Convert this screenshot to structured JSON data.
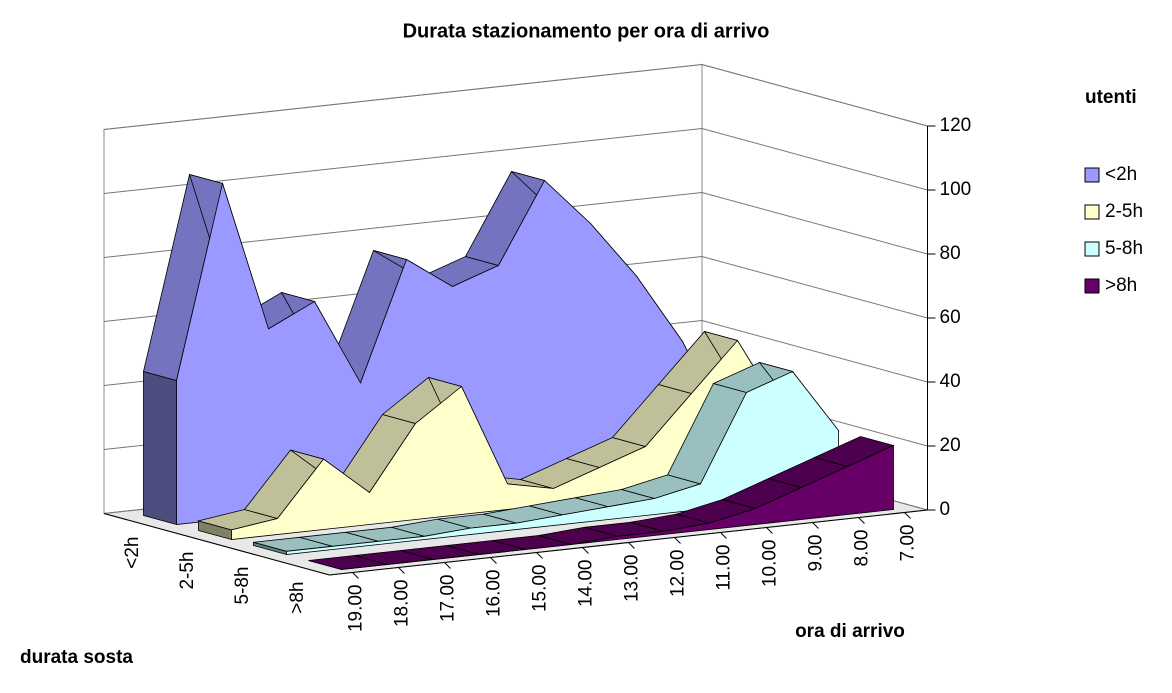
{
  "chart_data": {
    "type": "area",
    "title": "Durata stazionamento per ora di arrivo",
    "y_label": "utenti",
    "x_label": "ora di arrivo",
    "z_label": "durata sosta",
    "categories": [
      "19.00",
      "18.00",
      "17.00",
      "16.00",
      "15.00",
      "14.00",
      "13.00",
      "12.00",
      "11.00",
      "10.00",
      "9.00",
      "8.00",
      "7.00"
    ],
    "series": [
      {
        "name": "<2h",
        "color": "#9999ff",
        "values": [
          45,
          105,
          58,
          65,
          38,
          75,
          65,
          70,
          95,
          80,
          62,
          40,
          10
        ]
      },
      {
        "name": "2-5h",
        "color": "#ffffcc",
        "values": [
          3,
          5,
          22,
          10,
          30,
          40,
          8,
          5,
          10,
          15,
          30,
          45,
          20
        ]
      },
      {
        "name": "5-8h",
        "color": "#ccffff",
        "values": [
          1,
          1,
          1,
          1,
          2,
          2,
          3,
          4,
          5,
          8,
          35,
          40,
          20
        ]
      },
      {
        "name": ">8h",
        "color": "#660066",
        "values": [
          0,
          0,
          0,
          0,
          0,
          0,
          1,
          1,
          2,
          5,
          10,
          15,
          20
        ]
      }
    ],
    "ylim": [
      0,
      120
    ],
    "yticks": [
      0,
      20,
      40,
      60,
      80,
      100,
      120
    ],
    "grid": true,
    "legend": "right"
  }
}
